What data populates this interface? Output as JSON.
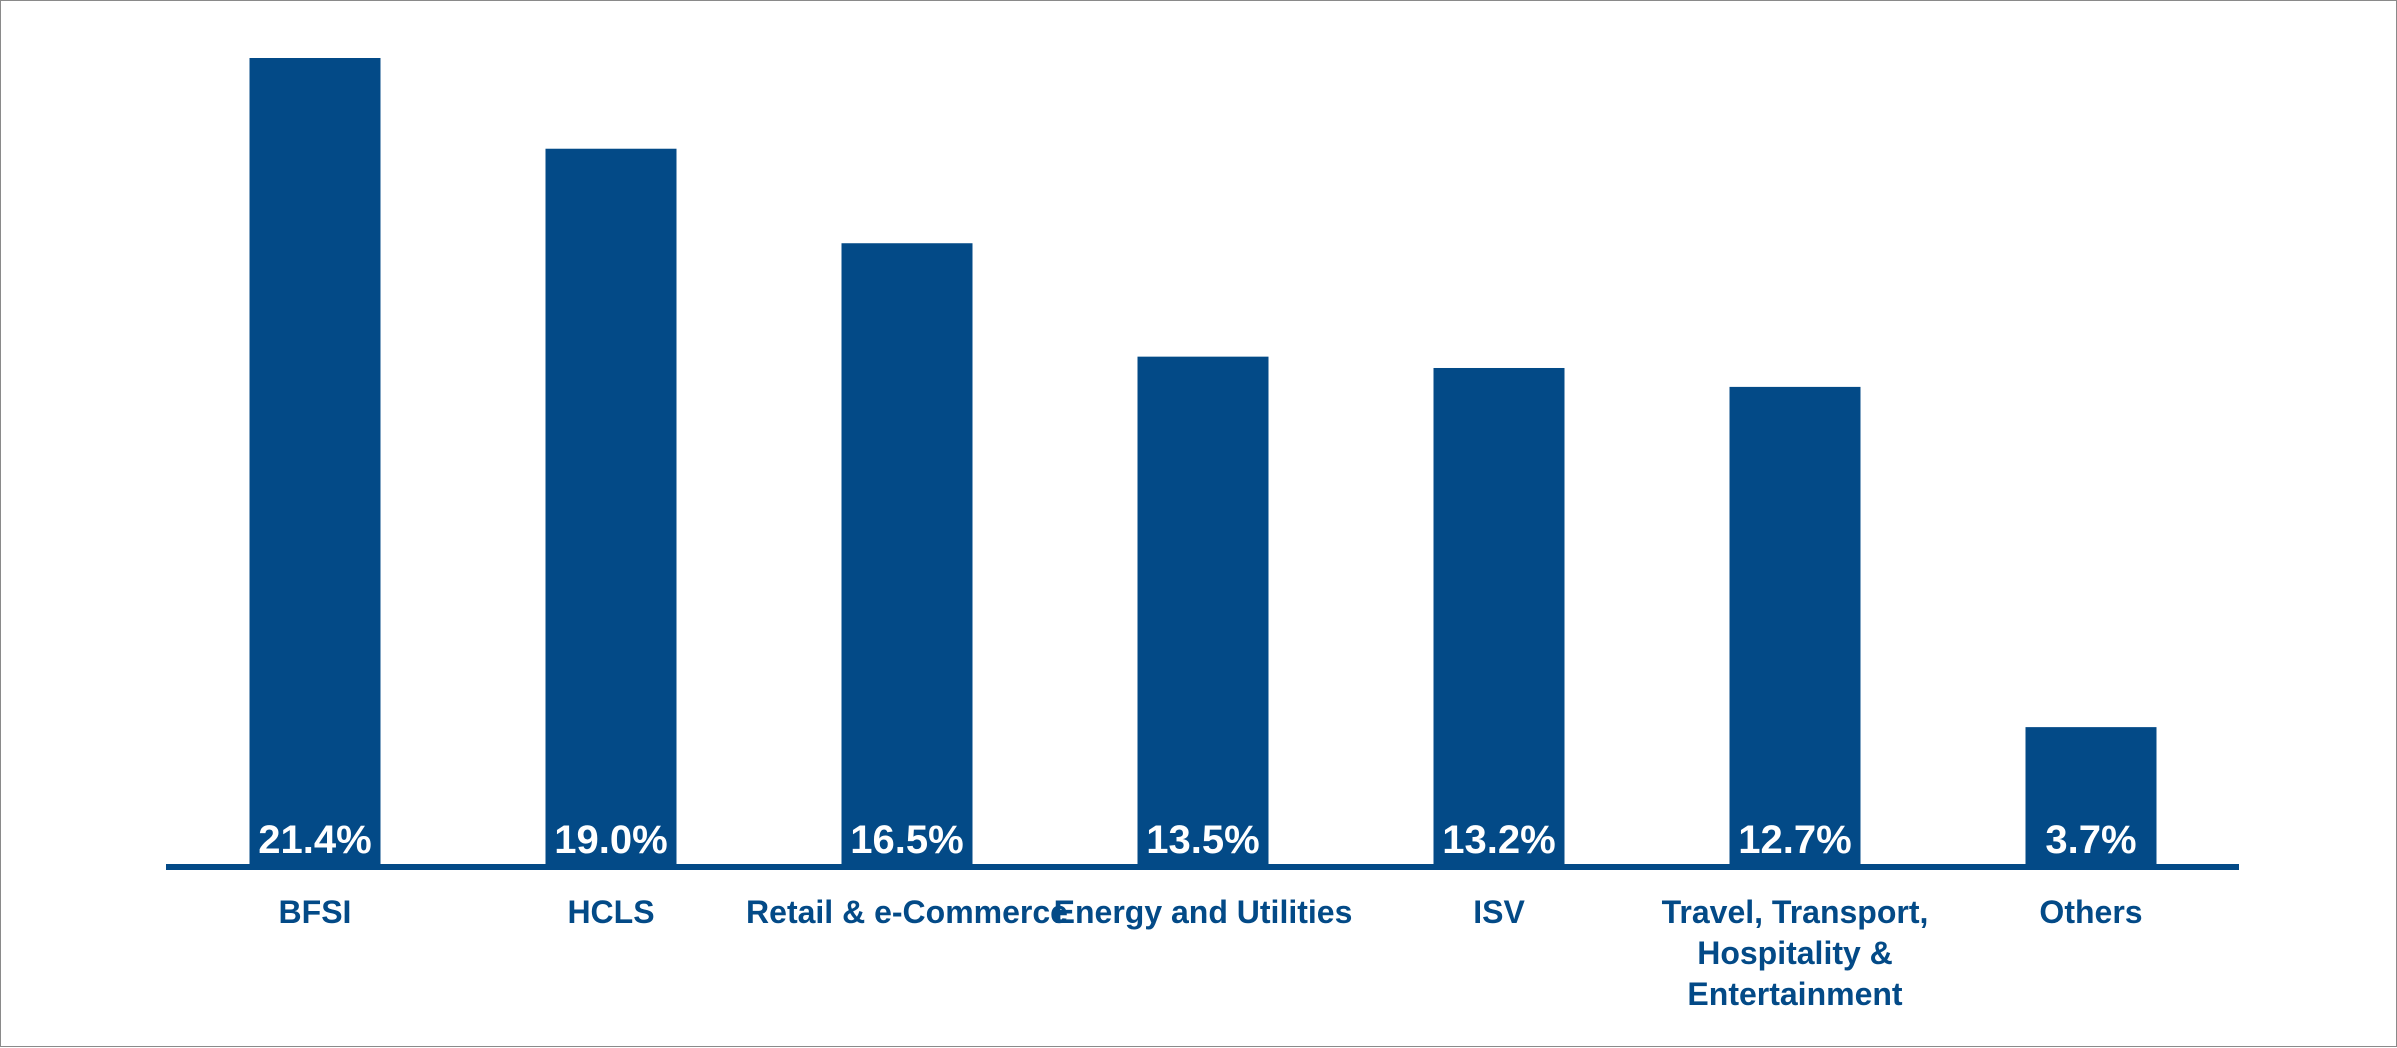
{
  "chart_data": {
    "type": "bar",
    "categories": [
      [
        "BFSI"
      ],
      [
        "HCLS"
      ],
      [
        "Retail & e-Commerce"
      ],
      [
        "Energy and Utilities"
      ],
      [
        "ISV"
      ],
      [
        "Travel, Transport,",
        "Hospitality &",
        "Entertainment"
      ],
      [
        "Others"
      ]
    ],
    "values": [
      21.4,
      19.0,
      16.5,
      13.5,
      13.2,
      12.7,
      3.7
    ],
    "value_labels": [
      "21.4%",
      "19.0%",
      "16.5%",
      "13.5%",
      "13.2%",
      "12.7%",
      "3.7%"
    ],
    "ylim": [
      0,
      21.4
    ],
    "grid": false,
    "legend": "none",
    "colors": {
      "bar": "#034a87",
      "axis": "#034a87",
      "label": "#034a87",
      "value_text": "#ffffff"
    }
  }
}
